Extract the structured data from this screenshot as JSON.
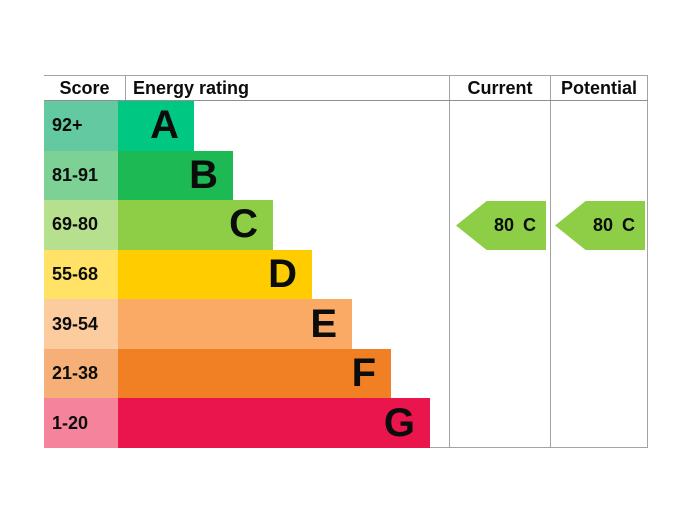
{
  "header": {
    "score": "Score",
    "energy_rating": "Energy rating",
    "current": "Current",
    "potential": "Potential"
  },
  "chart_data": {
    "type": "bar",
    "title": "Energy rating",
    "orientation": "horizontal",
    "categories": [
      "A",
      "B",
      "C",
      "D",
      "E",
      "F",
      "G"
    ],
    "bands": [
      {
        "letter": "A",
        "score_range": "92+",
        "color": "#00c781",
        "score_color": "#63c9a0"
      },
      {
        "letter": "B",
        "score_range": "81-91",
        "color": "#1db954",
        "score_color": "#7dd194"
      },
      {
        "letter": "C",
        "score_range": "69-80",
        "color": "#8dce46",
        "score_color": "#b7e08e"
      },
      {
        "letter": "D",
        "score_range": "55-68",
        "color": "#ffcc00",
        "score_color": "#ffe266"
      },
      {
        "letter": "E",
        "score_range": "39-54",
        "color": "#fbaa65",
        "score_color": "#fdcc9e"
      },
      {
        "letter": "F",
        "score_range": "21-38",
        "color": "#f08023",
        "score_color": "#f6b077"
      },
      {
        "letter": "G",
        "score_range": "1-20",
        "color": "#ea154c",
        "score_color": "#f4839b"
      }
    ],
    "current": {
      "value": "80",
      "band": "C",
      "arrow_color": "#8dce46"
    },
    "potential": {
      "value": "80",
      "band": "C",
      "arrow_color": "#8dce46"
    }
  }
}
